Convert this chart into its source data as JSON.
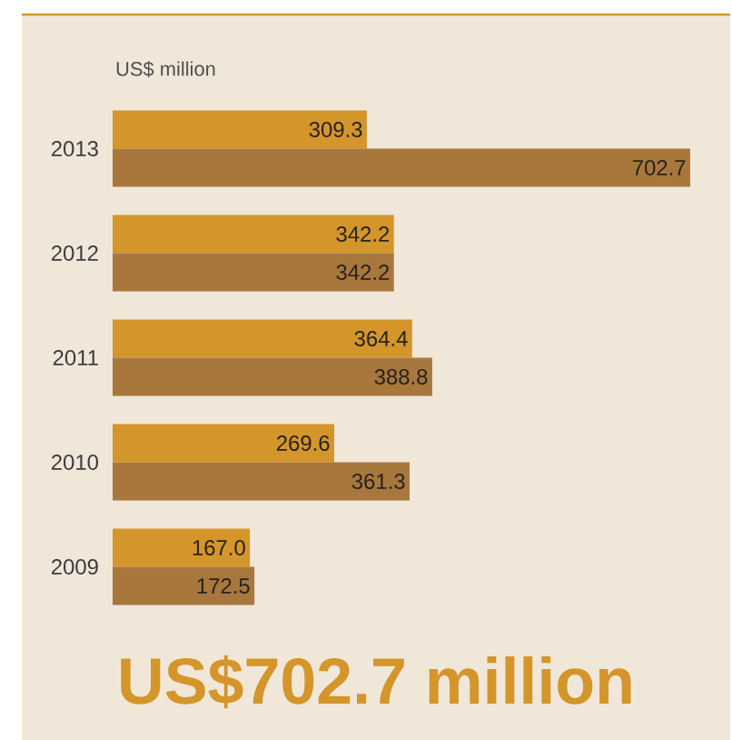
{
  "chart_data": {
    "type": "bar",
    "orientation": "horizontal",
    "title": "US$702.7 million",
    "subtitle": "US$ million",
    "categories": [
      "2013",
      "2012",
      "2011",
      "2010",
      "2009"
    ],
    "series": [
      {
        "color": "#d4952a",
        "values": [
          309.3,
          342.2,
          364.4,
          269.6,
          167.0
        ],
        "value_labels": [
          "309.3",
          "342.2",
          "364.4",
          "269.6",
          "167.0"
        ]
      },
      {
        "color": "#a8773c",
        "values": [
          702.7,
          342.2,
          388.8,
          361.3,
          172.5
        ],
        "value_labels": [
          "702.7",
          "342.2",
          "388.8",
          "361.3",
          "172.5"
        ]
      }
    ]
  }
}
